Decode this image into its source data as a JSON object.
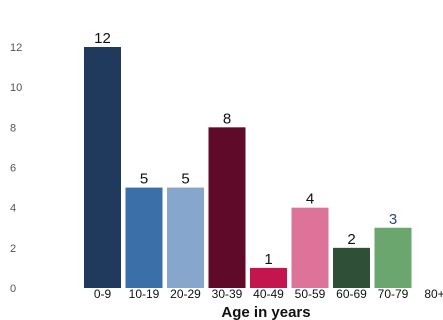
{
  "chart_data": {
    "type": "bar",
    "xlabel": "Age in years",
    "ylabel": "",
    "ylim": [
      0,
      12
    ],
    "yticks": [
      0,
      2,
      4,
      6,
      8,
      10,
      12
    ],
    "grid": false,
    "categories": [
      "0-9",
      "10-19",
      "20-29",
      "30-39",
      "40-49",
      "50-59",
      "60-69",
      "70-79",
      "80+"
    ],
    "values": [
      12,
      5,
      5,
      8,
      1,
      4,
      2,
      3,
      null
    ],
    "colors": [
      "#1f3a5c",
      "#3a6fa8",
      "#86a6cc",
      "#5e0a28",
      "#c4154f",
      "#de739a",
      "#2f4f36",
      "#6aa66e",
      "#ffffff"
    ],
    "data_label_colors": [
      "#111111",
      "#111111",
      "#111111",
      "#111111",
      "#111111",
      "#111111",
      "#111111",
      "#2d4a7a",
      "#111111"
    ]
  }
}
